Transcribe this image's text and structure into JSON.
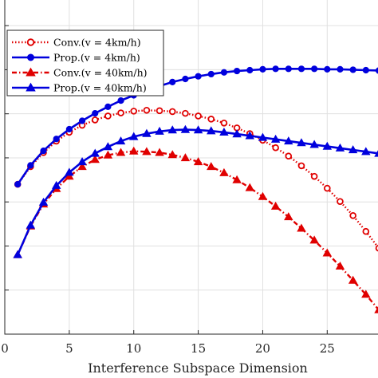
{
  "chart_data": {
    "type": "line",
    "xlabel": "Interference Subspace Dimension",
    "ylabel": "",
    "title": "",
    "xlim": [
      0,
      29
    ],
    "ylim": [
      0,
      7.6
    ],
    "x_ticks": [
      0,
      5,
      10,
      15,
      20,
      25
    ],
    "x_tick_labels": [
      "0",
      "5",
      "10",
      "15",
      "20",
      "25"
    ],
    "y_ticks": [
      0,
      1,
      2,
      3,
      4,
      5,
      6,
      7
    ],
    "grid": true,
    "legend_position": "top-left",
    "series": [
      {
        "name": "Conv.(v = 4km/h)",
        "color": "#e00000",
        "line_style": "dotted",
        "marker": "circle",
        "x": [
          1,
          2,
          3,
          4,
          5,
          6,
          7,
          8,
          9,
          10,
          11,
          12,
          13,
          14,
          15,
          16,
          17,
          18,
          19,
          20,
          21,
          22,
          23,
          24,
          25,
          26,
          27,
          28,
          29
        ],
        "y": [
          3.4,
          3.8,
          4.12,
          4.38,
          4.58,
          4.74,
          4.86,
          4.95,
          5.02,
          5.06,
          5.08,
          5.07,
          5.05,
          5.01,
          4.95,
          4.88,
          4.79,
          4.68,
          4.55,
          4.4,
          4.23,
          4.04,
          3.82,
          3.58,
          3.31,
          3.01,
          2.69,
          2.33,
          1.95
        ]
      },
      {
        "name": "Prop.(v = 4km/h)",
        "color": "#0000dd",
        "line_style": "solid",
        "marker": "circle",
        "x": [
          1,
          2,
          3,
          4,
          5,
          6,
          7,
          8,
          9,
          10,
          11,
          12,
          13,
          14,
          15,
          16,
          17,
          18,
          19,
          20,
          21,
          22,
          23,
          24,
          25,
          26,
          27,
          28,
          29
        ],
        "y": [
          3.4,
          3.83,
          4.16,
          4.43,
          4.65,
          4.84,
          5.01,
          5.16,
          5.3,
          5.42,
          5.53,
          5.63,
          5.72,
          5.79,
          5.85,
          5.9,
          5.94,
          5.97,
          5.99,
          6.01,
          6.02,
          6.02,
          6.02,
          6.02,
          6.01,
          6.01,
          6.0,
          5.99,
          5.98
        ]
      },
      {
        "name": "Conv.(v = 40km/h)",
        "color": "#e00000",
        "line_style": "dashdot",
        "marker": "triangle",
        "x": [
          1,
          2,
          3,
          4,
          5,
          6,
          7,
          8,
          9,
          10,
          11,
          12,
          13,
          14,
          15,
          16,
          17,
          18,
          19,
          20,
          21,
          22,
          23,
          24,
          25,
          26,
          27,
          28,
          29
        ],
        "y": [
          1.8,
          2.45,
          2.95,
          3.3,
          3.58,
          3.8,
          3.96,
          4.06,
          4.12,
          4.15,
          4.14,
          4.12,
          4.07,
          4.0,
          3.91,
          3.8,
          3.66,
          3.5,
          3.32,
          3.12,
          2.9,
          2.66,
          2.4,
          2.13,
          1.84,
          1.54,
          1.22,
          0.9,
          0.55
        ]
      },
      {
        "name": "Prop.(v = 40km/h)",
        "color": "#0000dd",
        "line_style": "solid",
        "marker": "triangle",
        "x": [
          1,
          2,
          3,
          4,
          5,
          6,
          7,
          8,
          9,
          10,
          11,
          12,
          13,
          14,
          15,
          16,
          17,
          18,
          19,
          20,
          21,
          22,
          23,
          24,
          25,
          26,
          27,
          28,
          29
        ],
        "y": [
          1.8,
          2.47,
          2.99,
          3.37,
          3.67,
          3.91,
          4.1,
          4.25,
          4.38,
          4.48,
          4.55,
          4.6,
          4.63,
          4.64,
          4.63,
          4.61,
          4.58,
          4.54,
          4.5,
          4.46,
          4.42,
          4.38,
          4.34,
          4.3,
          4.26,
          4.22,
          4.18,
          4.14,
          4.1
        ]
      }
    ]
  }
}
